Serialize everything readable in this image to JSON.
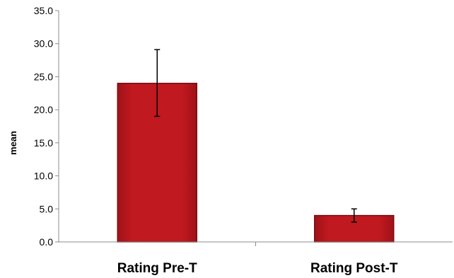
{
  "chart_data": {
    "type": "bar",
    "categories": [
      "Rating Pre-T",
      "Rating Post-T"
    ],
    "values": [
      24.0,
      4.0
    ],
    "error_low": [
      19.0,
      3.0
    ],
    "error_high": [
      29.1,
      5.0
    ],
    "ylabel": "mean",
    "xlabel": "",
    "ylim": [
      0,
      35
    ],
    "yticks": [
      "0.0",
      "5.0",
      "10.0",
      "15.0",
      "20.0",
      "25.0",
      "30.0",
      "35.0"
    ],
    "grid": false,
    "legend": "none",
    "bar_color": "#C0191F",
    "bar_edge_color": "#7A0E12"
  }
}
